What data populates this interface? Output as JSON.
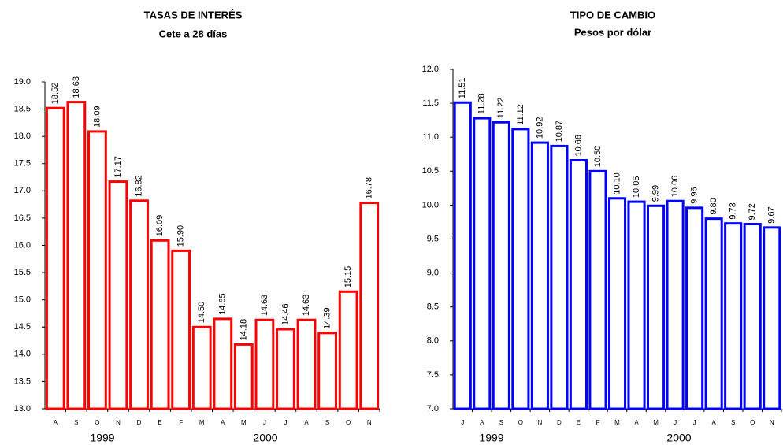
{
  "chart_data": [
    {
      "type": "bar",
      "title": "TASAS DE INTERÉS",
      "subtitle": "Cete a 28 días",
      "categories": [
        "A",
        "S",
        "O",
        "N",
        "D",
        "E",
        "F",
        "M",
        "A",
        "M",
        "J",
        "J",
        "A",
        "S",
        "O",
        "N"
      ],
      "values": [
        18.52,
        18.63,
        18.09,
        17.17,
        16.82,
        16.09,
        15.9,
        14.5,
        14.65,
        14.18,
        14.63,
        14.46,
        14.63,
        14.39,
        15.15,
        16.78
      ],
      "value_labels": [
        "18.52",
        "18.63",
        "18.09",
        "17.17",
        "16.82",
        "16.09",
        "15.90",
        "14.50",
        "14.65",
        "14.18",
        "14.63",
        "14.46",
        "14.63",
        "14.39",
        "15.15",
        "16.78"
      ],
      "color": "#ff0000",
      "ylim": [
        13,
        19
      ],
      "yticks": [
        {
          "value": 13,
          "label": "13.0"
        },
        {
          "value": 13.5,
          "label": "13.5"
        },
        {
          "value": 14,
          "label": "14.0"
        },
        {
          "value": 14.5,
          "label": "14.5"
        },
        {
          "value": 15,
          "label": "15.0"
        },
        {
          "value": 15.5,
          "label": "15.5"
        },
        {
          "value": 16,
          "label": "16.0"
        },
        {
          "value": 16.5,
          "label": "16.5"
        },
        {
          "value": 17,
          "label": "17.0"
        },
        {
          "value": 17.5,
          "label": "17.5"
        },
        {
          "value": 18,
          "label": "18.0"
        },
        {
          "value": 18.5,
          "label": "18.5"
        },
        {
          "value": 19,
          "label": "19.0"
        }
      ],
      "annotations": [
        "1999",
        "2000"
      ]
    },
    {
      "type": "bar",
      "title": "TIPO DE CAMBIO",
      "subtitle": "Pesos por dólar",
      "categories": [
        "J",
        "A",
        "S",
        "O",
        "N",
        "D",
        "E",
        "F",
        "M",
        "A",
        "M",
        "J",
        "J",
        "A",
        "S",
        "O",
        "N"
      ],
      "values": [
        11.51,
        11.28,
        11.22,
        11.12,
        10.92,
        10.87,
        10.66,
        10.5,
        10.1,
        10.05,
        9.99,
        10.06,
        9.96,
        9.8,
        9.73,
        9.72,
        9.67
      ],
      "value_labels": [
        "11.51",
        "11.28",
        "11.22",
        "11.12",
        "10.92",
        "10.87",
        "10.66",
        "10.50",
        "10.10",
        "10.05",
        "9.99",
        "10.06",
        "9.96",
        "9.80",
        "9.73",
        "9.72",
        "9.67"
      ],
      "color": "#0000ff",
      "ylim": [
        7,
        12
      ],
      "yticks": [
        {
          "value": 7,
          "label": "7.0"
        },
        {
          "value": 7.5,
          "label": "7.5"
        },
        {
          "value": 8,
          "label": "8.0"
        },
        {
          "value": 8.5,
          "label": "8.5"
        },
        {
          "value": 9,
          "label": "9.0"
        },
        {
          "value": 9.5,
          "label": "9.5"
        },
        {
          "value": 10,
          "label": "10.0"
        },
        {
          "value": 10.5,
          "label": "10.5"
        },
        {
          "value": 11,
          "label": "11.0"
        },
        {
          "value": 11.5,
          "label": "11.5"
        },
        {
          "value": 12,
          "label": "12.0"
        }
      ],
      "annotations": [
        "1999",
        "2000"
      ]
    }
  ]
}
